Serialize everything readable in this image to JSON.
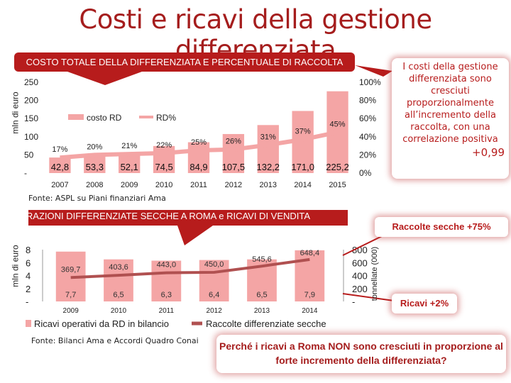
{
  "title": "Costi e ricavi della gestione differenziata",
  "chart_data": [
    {
      "type": "bar",
      "title": "COSTO TOTALE DELLA DIFFERENZIATA E PERCENTUALE DI RACCOLTA",
      "ylabel": "mln di euro",
      "ylim": [
        0,
        250
      ],
      "y_ticks": [
        "-",
        "50",
        "100",
        "150",
        "200",
        "250"
      ],
      "y2lim": [
        0,
        100
      ],
      "y2_ticks": [
        "0%",
        "20%",
        "40%",
        "60%",
        "80%",
        "100%"
      ],
      "categories": [
        "2007",
        "2008",
        "2009",
        "2010",
        "2011",
        "2012",
        "2013",
        "2014",
        "2015"
      ],
      "series": [
        {
          "name": "costo RD",
          "type": "bar",
          "values": [
            42.8,
            53.3,
            52.1,
            74.5,
            84.9,
            107.5,
            132.2,
            171.0,
            225.2
          ],
          "labels": [
            "42,8",
            "53,3",
            "52,1",
            "74,5",
            "84,9",
            "107,5",
            "132,2",
            "171,0",
            "225,2"
          ],
          "color": "#f4a5a5"
        },
        {
          "name": "RD%",
          "type": "line",
          "values": [
            17,
            20,
            21,
            22,
            25,
            26,
            31,
            37,
            45
          ],
          "labels": [
            "17%",
            "20%",
            "21%",
            "22%",
            "25%",
            "26%",
            "31%",
            "37%",
            "45%"
          ],
          "color": "#f4a5a5"
        }
      ],
      "legend": "top-center"
    },
    {
      "type": "bar",
      "title": "FRAZIONI DIFFERENZIATE SECCHE A ROMA e RICAVI DI VENDITA",
      "ylabel": "mln di euro",
      "ylim": [
        0,
        8
      ],
      "y_ticks": [
        "-",
        "2",
        "4",
        "6",
        "8"
      ],
      "y2label": "tonnellate (000)",
      "y2lim": [
        0,
        800
      ],
      "y2_ticks": [
        "-",
        "200",
        "400",
        "600",
        "800"
      ],
      "categories": [
        "2009",
        "2010",
        "2011",
        "2012",
        "2013",
        "2014"
      ],
      "series": [
        {
          "name": "Ricavi operativi da RD in bilancio",
          "type": "bar",
          "values": [
            7.7,
            6.5,
            6.3,
            6.4,
            6.5,
            7.9
          ],
          "labels": [
            "7,7",
            "6,5",
            "6,3",
            "6,4",
            "6,5",
            "7,9"
          ],
          "color": "#f4a5a5"
        },
        {
          "name": "Raccolte differenziate secche",
          "type": "line",
          "values": [
            369.7,
            403.6,
            443.0,
            450.0,
            545.6,
            648.4
          ],
          "labels": [
            "369,7",
            "403,6",
            "443,0",
            "450,0",
            "545,6",
            "648,4"
          ],
          "color": "#b05050"
        }
      ],
      "legend": "bottom"
    }
  ],
  "source1": "Fonte: ASPL su Piani finanziari Ama",
  "source2": "Fonte: Bilanci  Ama e Accordi Quadro Conai",
  "callout": {
    "text": "I costi della gestione differenziata sono cresciuti proporzionalmente all’incremento della raccolta,  con una correlazione positiva",
    "value": "+0,99"
  },
  "raccolte_badge": "Raccolte secche +75%",
  "ricavi_badge": "Ricavi +2%",
  "question": "Perché i ricavi a Roma NON sono cresciuti in proporzione al forte incremento della differenziata?",
  "colors": {
    "accent": "#b71c1c",
    "bar": "#f4a5a5",
    "line2": "#b05050"
  }
}
